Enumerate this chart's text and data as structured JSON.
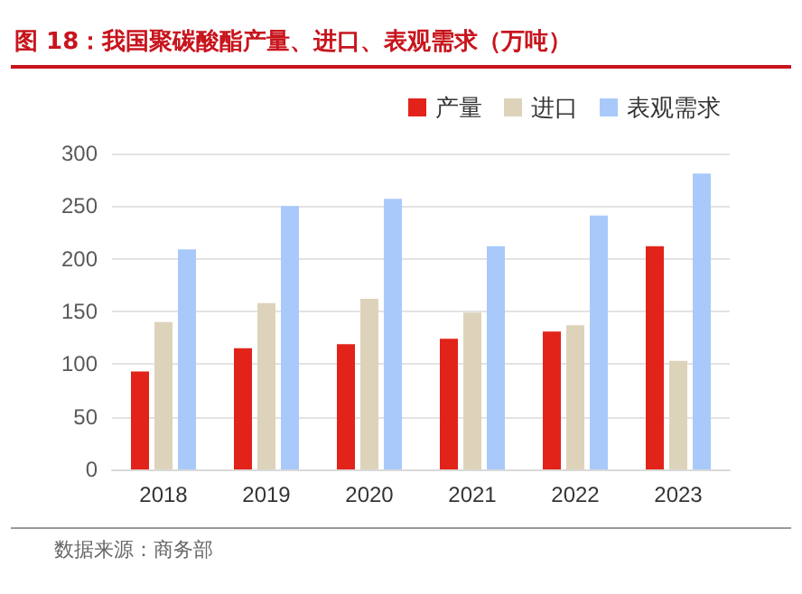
{
  "chart_data": {
    "type": "bar",
    "title": "图 18：我国聚碳酸酯产量、进口、表观需求（万吨）",
    "categories": [
      "2018",
      "2019",
      "2020",
      "2021",
      "2022",
      "2023"
    ],
    "series": [
      {
        "name": "产量",
        "color": "#e2231a",
        "values": [
          93,
          115,
          119,
          124,
          131,
          212
        ]
      },
      {
        "name": "进口",
        "color": "#ddd3bb",
        "values": [
          140,
          158,
          162,
          149,
          137,
          103
        ]
      },
      {
        "name": "表观需求",
        "color": "#a9c9fb",
        "values": [
          209,
          250,
          257,
          212,
          241,
          281
        ]
      }
    ],
    "ylim": [
      0,
      300
    ],
    "yticks": [
      0,
      50,
      100,
      150,
      200,
      250,
      300
    ],
    "grid": "y",
    "legend": "top right",
    "annotations": [
      "数据来源：商务部"
    ]
  }
}
